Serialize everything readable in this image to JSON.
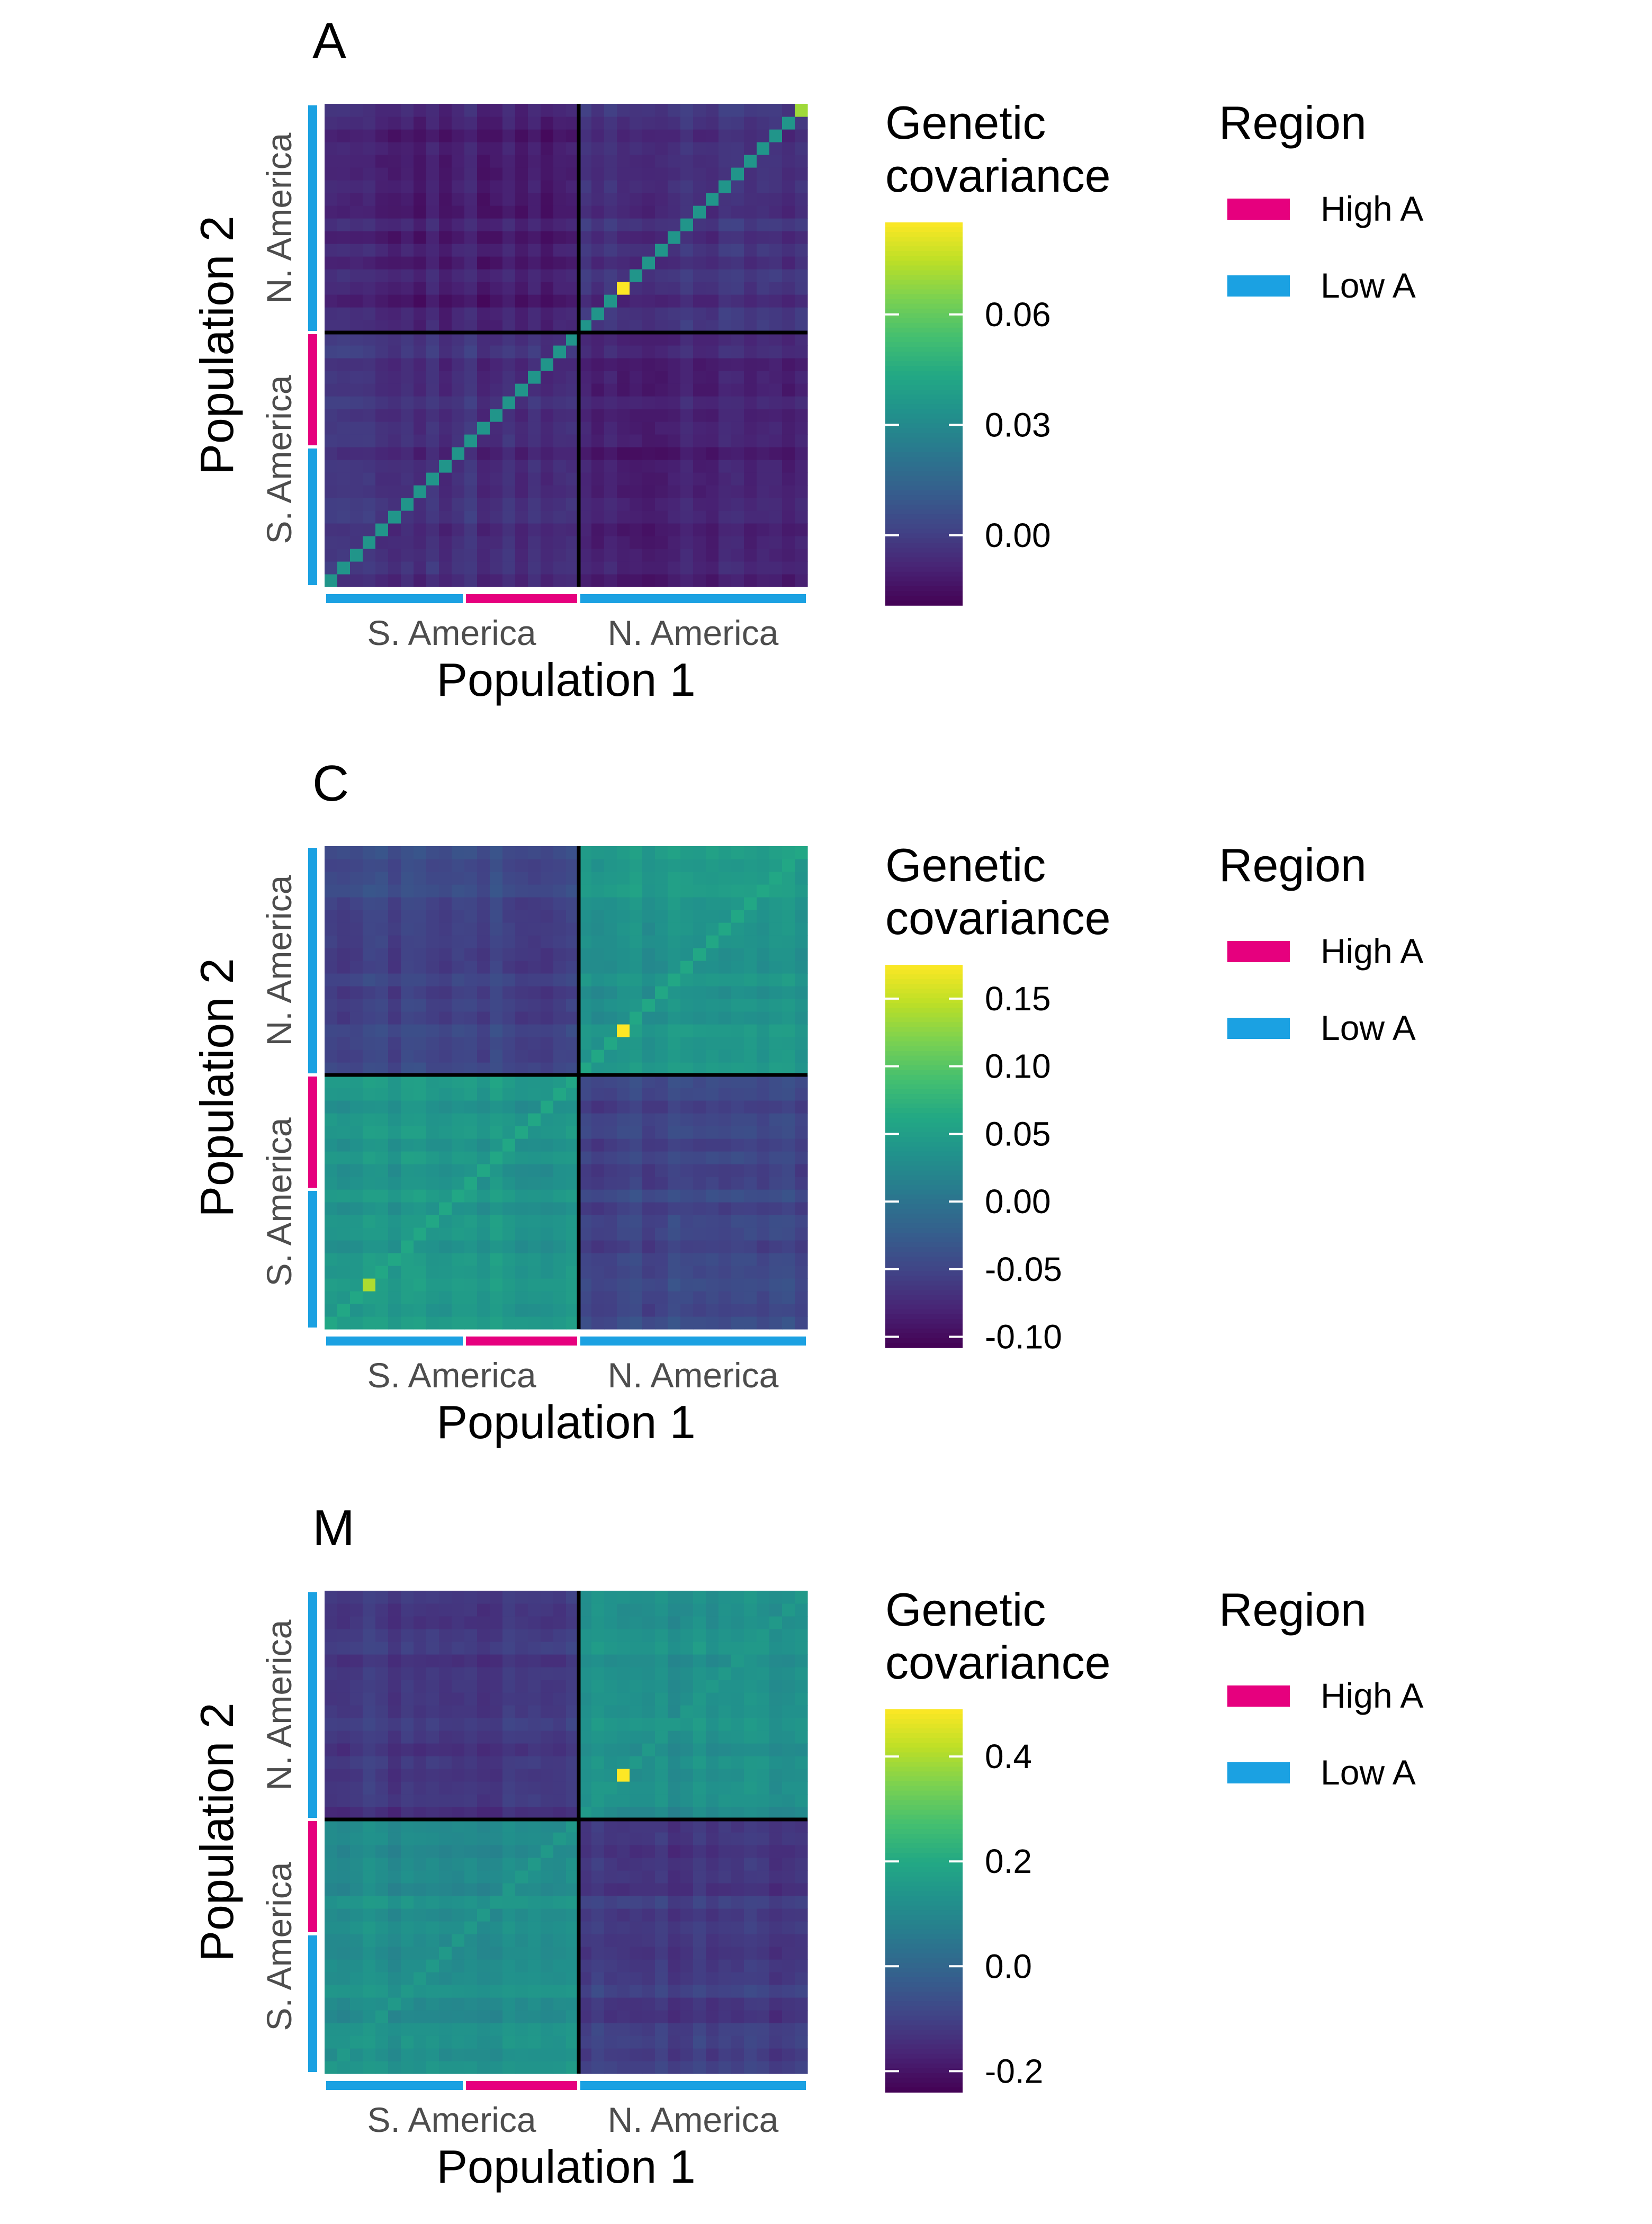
{
  "figure": {
    "panels": [
      {
        "label": "A",
        "colorbar": {
          "title_lines": [
            "Genetic",
            "covariance"
          ],
          "min": -0.019,
          "max": 0.085,
          "ticks": [
            0.0,
            0.03,
            0.06
          ],
          "tick_labels": [
            "0.00",
            "0.03",
            "0.06"
          ]
        },
        "legend": {
          "title": "Region",
          "items": [
            {
              "label": "High A",
              "color": "#E6007E"
            },
            {
              "label": "Low A",
              "color": "#1BA1E2"
            }
          ]
        }
      },
      {
        "label": "C",
        "colorbar": {
          "title_lines": [
            "Genetic",
            "covariance"
          ],
          "min": -0.108,
          "max": 0.175,
          "ticks": [
            -0.1,
            -0.05,
            0.0,
            0.05,
            0.1,
            0.15
          ],
          "tick_labels": [
            "-0.10",
            "-0.05",
            "0.00",
            "0.05",
            "0.10",
            "0.15"
          ]
        },
        "legend": {
          "title": "Region",
          "items": [
            {
              "label": "High A",
              "color": "#E6007E"
            },
            {
              "label": "Low A",
              "color": "#1BA1E2"
            }
          ]
        }
      },
      {
        "label": "M",
        "colorbar": {
          "title_lines": [
            "Genetic",
            "covariance"
          ],
          "min": -0.24,
          "max": 0.49,
          "ticks": [
            -0.2,
            0.0,
            0.2,
            0.4
          ],
          "tick_labels": [
            "-0.2",
            "0.0",
            "0.2",
            "0.4"
          ]
        },
        "legend": {
          "title": "Region",
          "items": [
            {
              "label": "High A",
              "color": "#E6007E"
            },
            {
              "label": "Low A",
              "color": "#1BA1E2"
            }
          ]
        }
      }
    ],
    "axes": {
      "xlabel": "Population 1",
      "ylabel": "Population 2",
      "group_labels": [
        "S. America",
        "N. America"
      ]
    }
  },
  "chart_data": [
    {
      "type": "heatmap",
      "title": "A",
      "xlabel": "Population 1",
      "ylabel": "Population 2",
      "n_populations": 38,
      "groups": [
        {
          "name": "S. America",
          "populations": 20
        },
        {
          "name": "N. America",
          "populations": 18
        }
      ],
      "region_blocks": [
        {
          "region": "Low A",
          "populations": 11
        },
        {
          "region": "High A",
          "populations": 9
        },
        {
          "region": "Low A",
          "populations": 18
        }
      ],
      "diagonal_value": 0.035,
      "within_group_value": -0.005,
      "between_group_value": -0.01,
      "highlight_cells": [
        {
          "i": 23,
          "j": 23,
          "value": 0.085
        },
        {
          "i": 37,
          "j": 37,
          "value": 0.07
        }
      ],
      "colorbar_range": [
        -0.019,
        0.085
      ]
    },
    {
      "type": "heatmap",
      "title": "C",
      "xlabel": "Population 1",
      "ylabel": "Population 2",
      "n_populations": 38,
      "groups": [
        {
          "name": "S. America",
          "populations": 20
        },
        {
          "name": "N. America",
          "populations": 18
        }
      ],
      "region_blocks": [
        {
          "region": "Low A",
          "populations": 11
        },
        {
          "region": "High A",
          "populations": 9
        },
        {
          "region": "Low A",
          "populations": 18
        }
      ],
      "diagonal_value": 0.06,
      "within_group_value": 0.04,
      "between_group_value": -0.05,
      "highlight_cells": [
        {
          "i": 23,
          "j": 23,
          "value": 0.175
        },
        {
          "i": 3,
          "j": 3,
          "value": 0.14
        }
      ],
      "colorbar_range": [
        -0.108,
        0.175
      ]
    },
    {
      "type": "heatmap",
      "title": "M",
      "xlabel": "Population 1",
      "ylabel": "Population 2",
      "n_populations": 38,
      "groups": [
        {
          "name": "S. America",
          "populations": 20
        },
        {
          "name": "N. America",
          "populations": 18
        }
      ],
      "region_blocks": [
        {
          "region": "Low A",
          "populations": 11
        },
        {
          "region": "High A",
          "populations": 9
        },
        {
          "region": "Low A",
          "populations": 18
        }
      ],
      "diagonal_value": 0.15,
      "within_group_value": 0.12,
      "between_group_value": -0.12,
      "highlight_cells": [
        {
          "i": 23,
          "j": 23,
          "value": 0.49
        }
      ],
      "colorbar_range": [
        -0.24,
        0.49
      ]
    }
  ]
}
